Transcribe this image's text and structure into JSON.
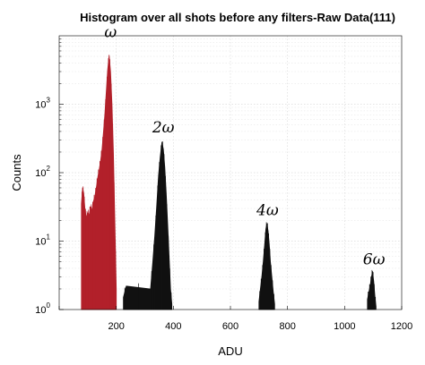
{
  "chart_data": {
    "type": "histogram",
    "title": "Histogram over all shots before any filters-Raw Data(111)",
    "xlabel": "ADU",
    "ylabel": "Counts",
    "xlim": [
      0,
      1200
    ],
    "ylim": [
      1,
      10000
    ],
    "yscale": "log",
    "grid": true,
    "x_ticks": [
      0,
      200,
      400,
      600,
      800,
      1000,
      1200
    ],
    "x_tick_labels": [
      "",
      "200",
      "400",
      "600",
      "800",
      "1000",
      "1200"
    ],
    "y_ticks": [
      1,
      10,
      100,
      1000
    ],
    "y_tick_labels": [
      {
        "base": "10",
        "exp": "0"
      },
      {
        "base": "10",
        "exp": "1"
      },
      {
        "base": "10",
        "exp": "2"
      },
      {
        "base": "10",
        "exp": "3"
      }
    ],
    "series": [
      {
        "color": "#b2202a",
        "x": [
          78,
          82,
          86,
          90,
          95,
          100,
          105,
          110,
          115,
          120,
          125,
          130,
          135,
          140,
          145,
          150,
          155,
          160,
          165,
          170,
          175,
          180,
          185,
          190,
          195,
          200
        ],
        "y": [
          35,
          60,
          50,
          30,
          22,
          26,
          24,
          32,
          28,
          38,
          45,
          60,
          85,
          110,
          150,
          220,
          380,
          700,
          1500,
          3200,
          5200,
          3000,
          1000,
          200,
          20,
          2
        ]
      },
      {
        "color": "#111111",
        "x": [
          225,
          235,
          320,
          328,
          335,
          342,
          348,
          354,
          360,
          365,
          370,
          375,
          380,
          385,
          390,
          395
        ],
        "y": [
          1.5,
          2.2,
          2,
          5,
          12,
          35,
          90,
          170,
          280,
          220,
          120,
          50,
          18,
          6,
          2,
          1.2
        ],
        "note": ""
      },
      {
        "color": "#111111",
        "x": [
          700,
          705,
          710,
          715,
          720,
          724,
          728,
          732,
          736,
          740,
          745,
          750,
          755
        ],
        "y": [
          1.3,
          2,
          3,
          5,
          9,
          15,
          18,
          14,
          9,
          5,
          3,
          1.8,
          1.2
        ]
      },
      {
        "color": "#111111",
        "x": [
          1080,
          1085,
          1090,
          1094,
          1098,
          1102,
          1106,
          1110
        ],
        "y": [
          1.4,
          1.8,
          2.3,
          3,
          3.6,
          2.6,
          1.6,
          1.1
        ]
      }
    ],
    "annotations": [
      {
        "text": "ω",
        "x": 180,
        "y": 9500
      },
      {
        "text": "2ω",
        "x": 365,
        "y": 390
      },
      {
        "text": "4ω",
        "x": 730,
        "y": 24
      },
      {
        "text": "6ω",
        "x": 1103,
        "y": 4.6
      }
    ]
  }
}
